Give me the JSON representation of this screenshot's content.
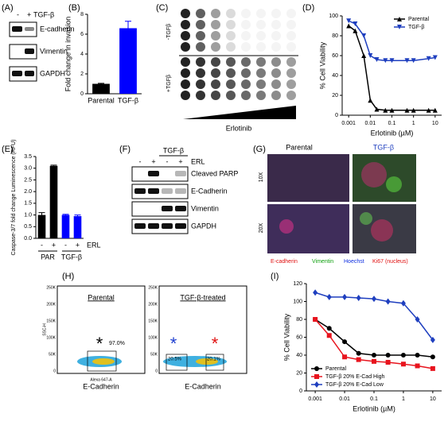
{
  "panels": {
    "letters": [
      "(A)",
      "(B)",
      "(C)",
      "(D)",
      "(E)",
      "(F)",
      "(G)",
      "(H)",
      "(I)"
    ],
    "A": {
      "minus": "-",
      "plus": "+",
      "treatment": "TGF-β",
      "rows": [
        "E-cadherin",
        "Vimentin",
        "GAPDH"
      ]
    },
    "C": {
      "minus_label": "-TGFβ",
      "plus_label": "+TGFβ",
      "drug": "Erlotinib"
    },
    "F": {
      "treatment": "TGF-β",
      "signs": [
        "-",
        "+",
        "-",
        "+"
      ],
      "drug": "ERL",
      "rows": [
        "Cleaved PARP",
        "E-Cadherin",
        "Vimentin",
        "GAPDH"
      ]
    },
    "G": {
      "columns": [
        "Parental",
        "TGF-β"
      ],
      "rows": [
        "10X",
        "20X"
      ],
      "stains": [
        "E-cadherin",
        "Vimentin",
        "Hoechst",
        "Ki67 (nucleus)"
      ]
    },
    "H": {
      "plots": [
        {
          "title": "Parental",
          "gates": [
            "97.0%"
          ],
          "xlabel": "E-Cadherin"
        },
        {
          "title": "TGF-β-treated",
          "gates": [
            "20.5%",
            "20.1%"
          ],
          "xlabel": "E-Cadherin"
        }
      ],
      "ylabel": "SSC-H",
      "xaxis": "Alexa 647-A",
      "yticks": [
        "250K",
        "200K",
        "150K",
        "100K",
        "50K",
        "0"
      ]
    }
  },
  "chart_data": [
    {
      "type": "bar",
      "ylabel": "Fold change in invasion",
      "categories": [
        "Parental",
        "TGF-β"
      ],
      "values": [
        1.0,
        6.6
      ],
      "errors": [
        0.05,
        0.7
      ],
      "colors": [
        "#000000",
        "#0000ff"
      ],
      "ylim": [
        0,
        8
      ],
      "yticks": [
        0,
        2,
        4,
        6,
        8
      ]
    },
    {
      "type": "line",
      "ylabel": "% Cell Viability",
      "xlabel": "Erlotinib (µM)",
      "xscale": "log",
      "xlim": [
        0.0005,
        20
      ],
      "xticks": [
        0.001,
        0.01,
        0.1,
        1,
        10
      ],
      "ylim": [
        0,
        100
      ],
      "yticks": [
        0,
        20,
        40,
        60,
        80,
        100
      ],
      "legend": "upper right",
      "series": [
        {
          "name": "Parental",
          "color": "#000000",
          "marker": "triangle",
          "x": [
            0.001,
            0.002,
            0.005,
            0.01,
            0.02,
            0.05,
            0.1,
            0.5,
            1,
            5,
            10
          ],
          "values": [
            90,
            85,
            60,
            15,
            6,
            5,
            5,
            5,
            5,
            5,
            5
          ]
        },
        {
          "name": "TGF-β",
          "color": "#1f3fbf",
          "marker": "triangle-down",
          "x": [
            0.001,
            0.002,
            0.005,
            0.01,
            0.02,
            0.05,
            0.1,
            0.5,
            1,
            5,
            10
          ],
          "values": [
            95,
            92,
            80,
            60,
            56,
            55,
            55,
            55,
            55,
            57,
            58
          ]
        }
      ]
    },
    {
      "type": "bar",
      "ylabel": "Caspase-3/7 fold change Luminescence (RFU)",
      "categories": [
        "-",
        "+",
        "-",
        "+"
      ],
      "values": [
        1.0,
        3.1,
        1.0,
        0.95
      ],
      "errors": [
        0.1,
        0.03,
        0.03,
        0.05
      ],
      "colors": [
        "#000000",
        "#000000",
        "#0000ff",
        "#0000ff"
      ],
      "ylim": [
        0,
        3.5
      ],
      "yticks": [
        {
          "value": 0,
          "label": "0.0"
        },
        {
          "value": 0.5,
          "label": "0.5"
        },
        {
          "value": 1,
          "label": "1.0"
        },
        {
          "value": 1.5,
          "label": "1.5"
        },
        {
          "value": 2,
          "label": "2.0"
        },
        {
          "value": 2.5,
          "label": "2.5"
        },
        {
          "value": 3,
          "label": "3.0"
        },
        {
          "value": 3.5,
          "label": "3.5"
        }
      ],
      "x_annotation": "ERL",
      "group_labels": [
        "PAR",
        "TGF-β"
      ]
    },
    {
      "type": "line",
      "ylabel": "% Cell Viability",
      "xlabel": "Erlotinib (µM)",
      "xscale": "log",
      "xlim": [
        0.0005,
        20
      ],
      "xticks": [
        0.001,
        0.01,
        0.1,
        1,
        10
      ],
      "ylim": [
        0,
        120
      ],
      "yticks": [
        0,
        20,
        40,
        60,
        80,
        100,
        120
      ],
      "legend": "lower left",
      "series": [
        {
          "name": "Parental",
          "color": "#000000",
          "marker": "circle",
          "x": [
            0.001,
            0.003,
            0.01,
            0.03,
            0.1,
            0.3,
            1,
            3,
            10
          ],
          "values": [
            80,
            70,
            55,
            42,
            40,
            40,
            40,
            40,
            38
          ]
        },
        {
          "name": "TGF-β 20% E-Cad High",
          "color": "#e8141e",
          "marker": "square",
          "x": [
            0.001,
            0.003,
            0.01,
            0.03,
            0.1,
            0.3,
            1,
            3,
            10
          ],
          "values": [
            80,
            62,
            38,
            35,
            33,
            32,
            30,
            28,
            25
          ]
        },
        {
          "name": "TGF-β 20% E-Cad Low",
          "color": "#1f3fbf",
          "marker": "diamond",
          "x": [
            0.001,
            0.003,
            0.01,
            0.03,
            0.1,
            0.3,
            1,
            3,
            10
          ],
          "values": [
            110,
            105,
            105,
            104,
            103,
            100,
            98,
            80,
            57
          ]
        }
      ]
    }
  ]
}
